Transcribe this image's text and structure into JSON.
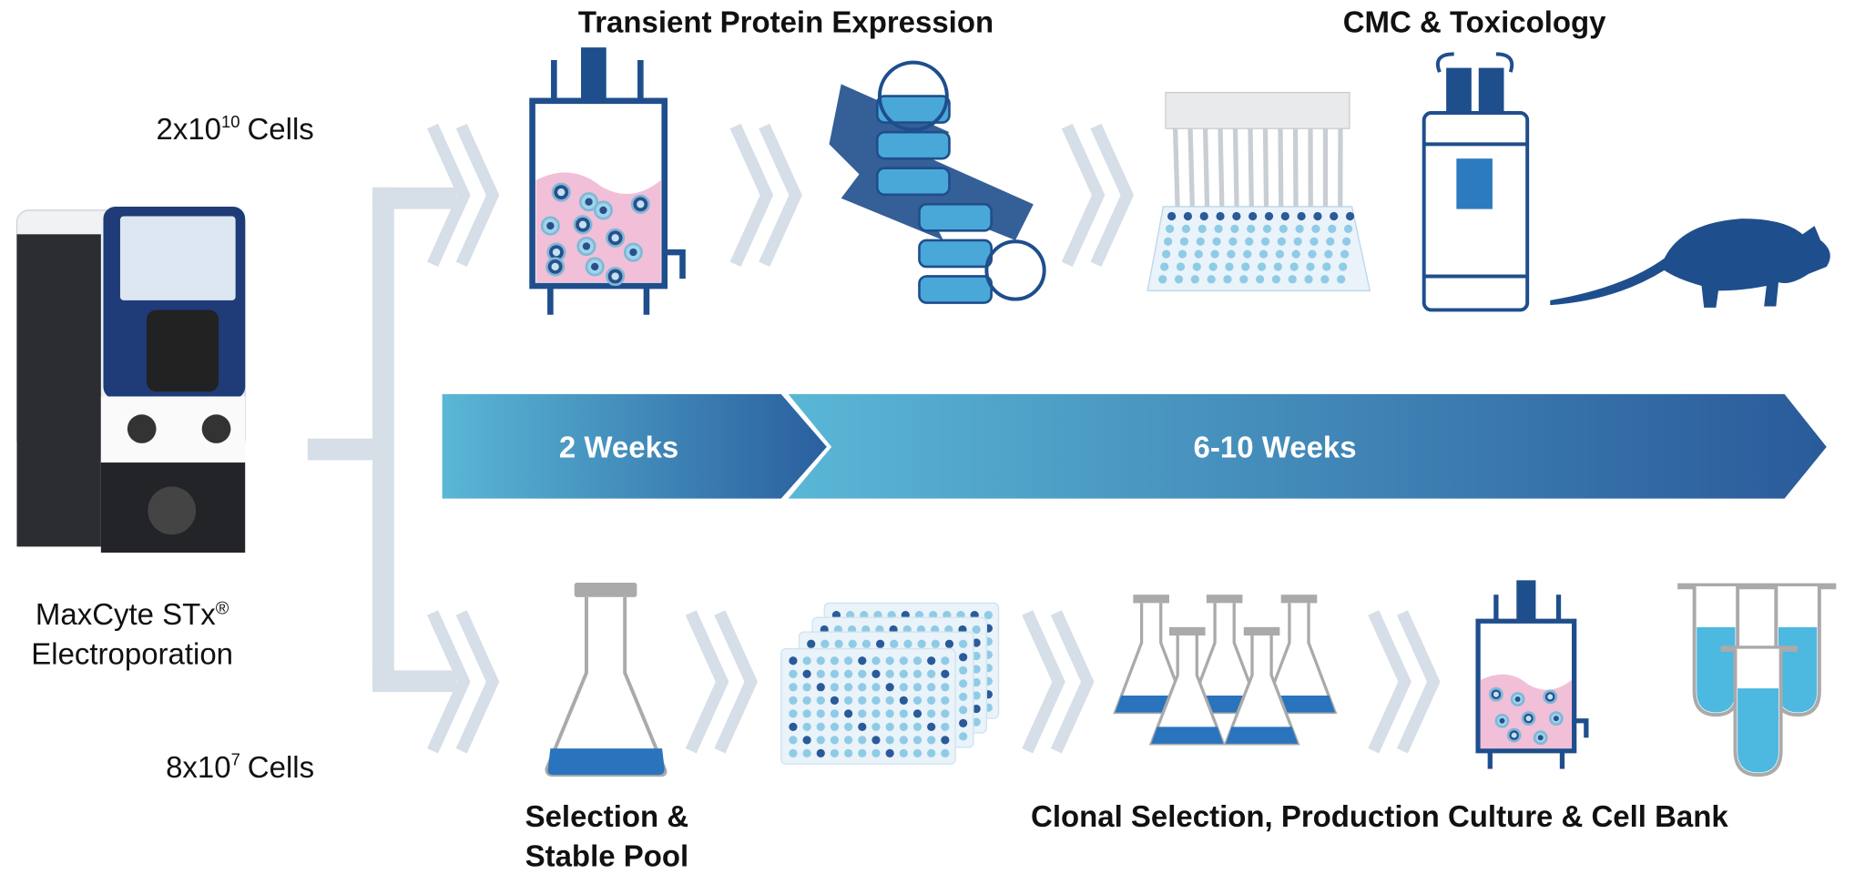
{
  "header": {
    "left_title": "Transient Protein Expression",
    "right_title": "CMC & Toxicology"
  },
  "cells_top": {
    "base": "2x10",
    "exponent": "10",
    "unit": "Cells"
  },
  "cells_bottom": {
    "base": "8x10",
    "exponent": "7",
    "unit": "Cells"
  },
  "device": {
    "name": "MaxCyte STx",
    "mark": "®",
    "function": "Electroporation"
  },
  "timeline": {
    "phase_1": "2 Weeks",
    "phase_2": "6-10 Weeks"
  },
  "bottom_labels": {
    "stable_pool_line_1": "Selection &",
    "stable_pool_line_2": "Stable Pool",
    "clonal": "Clonal Selection, Production Culture & Cell Bank"
  }
}
